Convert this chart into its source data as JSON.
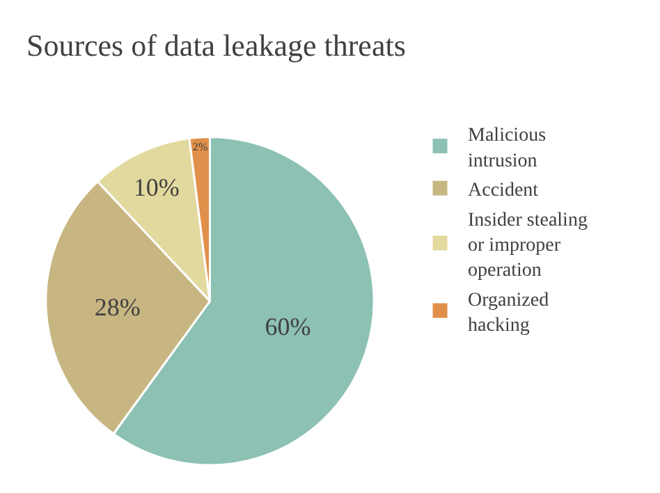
{
  "chart_data": {
    "type": "pie",
    "title": "Sources of data leakage threats",
    "categories": [
      "Malicious intrusion",
      "Accident",
      "Insider stealing or improper operation",
      "Organized hacking"
    ],
    "values": [
      60,
      28,
      10,
      2
    ],
    "colors": [
      "#8cc1b3",
      "#c8b682",
      "#e2d99e",
      "#e0904a"
    ],
    "value_labels": [
      "60%",
      "28%",
      "10%",
      "2%"
    ],
    "legend": "right"
  }
}
